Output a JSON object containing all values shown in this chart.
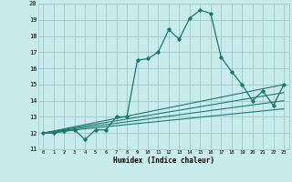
{
  "xlabel": "Humidex (Indice chaleur)",
  "bg_color": "#c8ecec",
  "grid_color": "#a0c8c8",
  "line_color": "#1a7a6a",
  "xlim": [
    -0.5,
    23.5
  ],
  "ylim": [
    11,
    20
  ],
  "xticks": [
    0,
    1,
    2,
    3,
    4,
    5,
    6,
    7,
    8,
    9,
    10,
    11,
    12,
    13,
    14,
    15,
    16,
    17,
    18,
    19,
    20,
    21,
    22,
    23
  ],
  "yticks": [
    11,
    12,
    13,
    14,
    15,
    16,
    17,
    18,
    19,
    20
  ],
  "series1_x": [
    0,
    1,
    2,
    3,
    4,
    5,
    6,
    7,
    8,
    9,
    10,
    11,
    12,
    13,
    14,
    15,
    16,
    17,
    18,
    19,
    20,
    21,
    22,
    23
  ],
  "series1_y": [
    12.0,
    12.0,
    12.1,
    12.2,
    11.6,
    12.2,
    12.2,
    13.0,
    13.0,
    16.5,
    16.6,
    17.0,
    18.4,
    17.8,
    19.1,
    19.6,
    19.4,
    16.7,
    15.8,
    15.0,
    14.0,
    14.6,
    13.7,
    15.0
  ],
  "series2_x": [
    0,
    23
  ],
  "series2_y": [
    12.0,
    15.0
  ],
  "series3_x": [
    0,
    23
  ],
  "series3_y": [
    12.0,
    14.5
  ],
  "series4_x": [
    0,
    23
  ],
  "series4_y": [
    12.0,
    14.0
  ],
  "series5_x": [
    0,
    23
  ],
  "series5_y": [
    12.0,
    13.5
  ]
}
